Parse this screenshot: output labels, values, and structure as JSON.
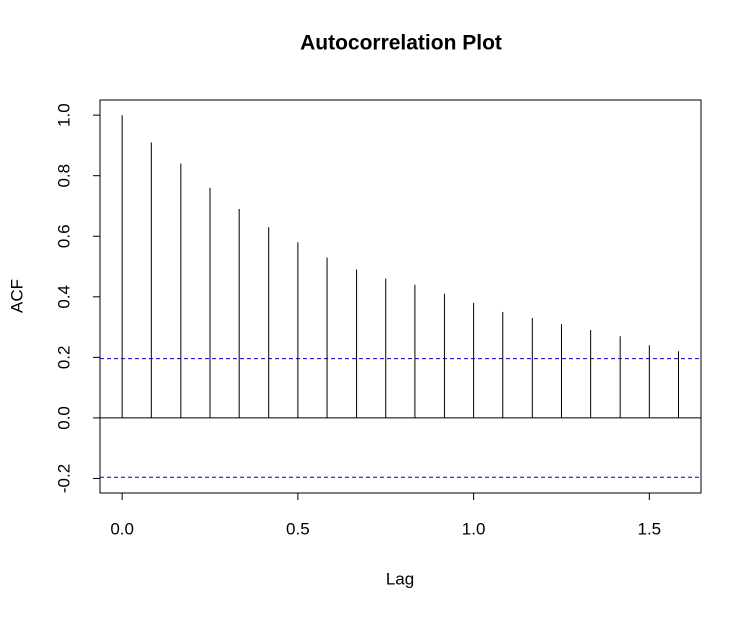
{
  "chart_data": {
    "type": "acf",
    "title": "Autocorrelation Plot",
    "x_label": "Lag",
    "y_label": "ACF",
    "x": [
      0,
      0.083,
      0.167,
      0.25,
      0.333,
      0.417,
      0.5,
      0.583,
      0.667,
      0.75,
      0.833,
      0.917,
      1,
      1.083,
      1.167,
      1.25,
      1.333,
      1.417,
      1.5,
      1.583
    ],
    "values": [
      1.0,
      0.91,
      0.84,
      0.76,
      0.69,
      0.63,
      0.58,
      0.53,
      0.49,
      0.46,
      0.44,
      0.41,
      0.38,
      0.35,
      0.33,
      0.31,
      0.29,
      0.27,
      0.24,
      0.22
    ],
    "color": "#000000",
    "confidence_bounds": [
      -0.196,
      0.196
    ],
    "confidence_color": "#0000cc",
    "xlim": [
      -0.063,
      1.647
    ],
    "ylim": [
      -0.248,
      1.05
    ],
    "xticks": [
      {
        "value": 0,
        "label": "0.0"
      },
      0.5,
      {
        "value": 1,
        "label": "1.0"
      },
      1.5
    ],
    "yticks": [
      -0.2,
      {
        "value": 0,
        "label": "0.0"
      },
      0.2,
      0.4,
      0.6,
      0.8,
      {
        "value": 1,
        "label": "1.0"
      }
    ]
  }
}
